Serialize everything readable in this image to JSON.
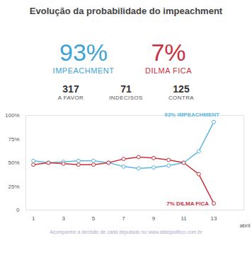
{
  "chart_data": {
    "type": "line",
    "title": "Evolução da probabilidade do impeachment",
    "headline": [
      {
        "name": "IMPEACHMENT",
        "value": 93,
        "label": "93%",
        "color": "#3fa3d6"
      },
      {
        "name": "DILMA FICA",
        "value": 7,
        "label": "7%",
        "color": "#c9303e"
      }
    ],
    "counts": [
      {
        "name": "A FAVOR",
        "value": 317
      },
      {
        "name": "INDECISOS",
        "value": 71
      },
      {
        "name": "CONTRA",
        "value": 125
      }
    ],
    "x": [
      1,
      2,
      3,
      4,
      5,
      6,
      7,
      8,
      9,
      10,
      11,
      12,
      13
    ],
    "x_label": "abril",
    "series": [
      {
        "name": "IMPEACHMENT",
        "color": "#5bb8e0",
        "values": [
          52,
          50,
          51,
          52,
          52,
          50,
          46,
          44,
          45,
          47,
          50,
          62,
          93
        ]
      },
      {
        "name": "DILMA FICA",
        "color": "#c9303e",
        "values": [
          48,
          50,
          49,
          48,
          48,
          50,
          54,
          56,
          55,
          53,
          50,
          38,
          7
        ]
      }
    ],
    "xlim": [
      0.5,
      15
    ],
    "xticks": [
      1,
      3,
      5,
      7,
      9,
      11,
      13
    ],
    "ylim": [
      0,
      100
    ],
    "yticks": [
      0,
      {
        "value": 25,
        "label": "25%"
      },
      {
        "value": 50,
        "label": "50%"
      },
      {
        "value": 75,
        "label": "75%"
      },
      {
        "value": 100,
        "label": "100%"
      }
    ],
    "annotations": [
      {
        "text": "93% IMPEACHMENT",
        "series": "IMPEACHMENT"
      },
      {
        "text": "7% DILMA FICA",
        "series": "DILMA FICA"
      }
    ],
    "caption": "Acompanhe a decisão de cada deputado no www.atlaspolitico.com.br",
    "grid": false,
    "marker": "circle"
  }
}
